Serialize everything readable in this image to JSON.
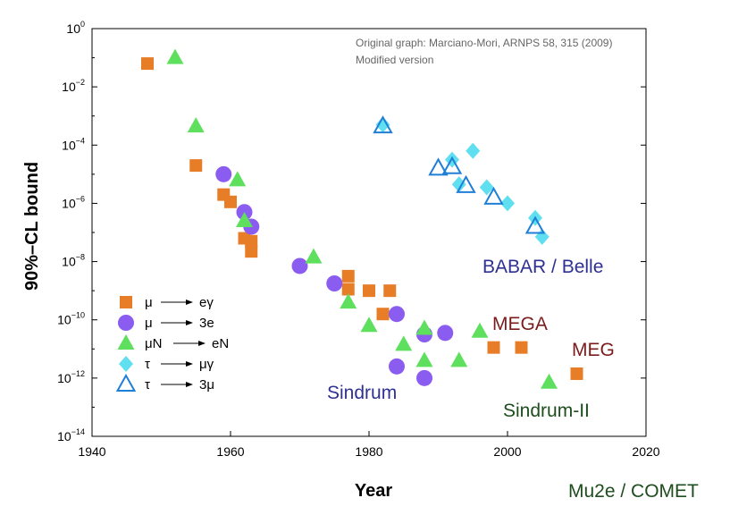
{
  "chart_data": {
    "type": "scatter",
    "title": "",
    "xlabel": "Year",
    "ylabel": "90%–CL bound",
    "xlim": [
      1940,
      2020
    ],
    "ylim_exp": [
      -14,
      0
    ],
    "log_y": true,
    "grid": false,
    "legend_position": "bottom-left",
    "x_ticks": [
      1940,
      1960,
      1980,
      2000,
      2020
    ],
    "y_tick_exponents": [
      0,
      -2,
      -4,
      -6,
      -8,
      -10,
      -12,
      -14
    ],
    "notes": [
      "Original graph: Marciano-Mori, ARNPS 58, 315 (2009)",
      "Modified version"
    ],
    "annotations": [
      {
        "text": "BABAR / Belle",
        "color": "#2e3192"
      },
      {
        "text": "MEGA",
        "color": "#7b1c1c"
      },
      {
        "text": "MEG",
        "color": "#7b1c1c"
      },
      {
        "text": "Sindrum",
        "color": "#2e3192"
      },
      {
        "text": "Sindrum-II",
        "color": "#1e4d1e"
      },
      {
        "text": "Mu2e / COMET",
        "color": "#1e4d1e"
      }
    ],
    "series": [
      {
        "name": "μ → eγ",
        "legend_left": "μ",
        "legend_right": "eγ",
        "marker": "square",
        "color": "#e87d28",
        "points": [
          [
            1948,
            -1.2
          ],
          [
            1955,
            -4.7
          ],
          [
            1959,
            -5.7
          ],
          [
            1960,
            -5.95
          ],
          [
            1962,
            -7.2
          ],
          [
            1963,
            -7.3
          ],
          [
            1963,
            -7.65
          ],
          [
            1977,
            -8.5
          ],
          [
            1977,
            -8.95
          ],
          [
            1980,
            -9.0
          ],
          [
            1982,
            -9.8
          ],
          [
            1983,
            -9.0
          ],
          [
            1998,
            -10.95
          ],
          [
            2002,
            -10.95
          ],
          [
            2010,
            -11.85
          ]
        ]
      },
      {
        "name": "μ → 3e",
        "legend_left": "μ",
        "legend_right": "3e",
        "marker": "circle",
        "color": "#8b5cf0",
        "points": [
          [
            1959,
            -5.0
          ],
          [
            1962,
            -6.3
          ],
          [
            1963,
            -6.8
          ],
          [
            1970,
            -8.15
          ],
          [
            1975,
            -8.75
          ],
          [
            1984,
            -9.8
          ],
          [
            1984,
            -11.6
          ],
          [
            1988,
            -10.5
          ],
          [
            1988,
            -12.0
          ],
          [
            1991,
            -10.45
          ]
        ]
      },
      {
        "name": "μN → eN",
        "legend_left": "μN",
        "legend_right": "eN",
        "marker": "triangle",
        "color": "#5ee05e",
        "points": [
          [
            1952,
            -1.0
          ],
          [
            1955,
            -3.35
          ],
          [
            1961,
            -5.2
          ],
          [
            1962,
            -6.6
          ],
          [
            1972,
            -7.85
          ],
          [
            1977,
            -9.4
          ],
          [
            1980,
            -10.2
          ],
          [
            1985,
            -10.85
          ],
          [
            1988,
            -10.3
          ],
          [
            1988,
            -11.4
          ],
          [
            1993,
            -11.4
          ],
          [
            1996,
            -10.4
          ],
          [
            2006,
            -12.15
          ]
        ]
      },
      {
        "name": "τ → μγ",
        "legend_left": "τ",
        "legend_right": "μγ",
        "marker": "diamond",
        "color": "#5fdff0",
        "points": [
          [
            1982,
            -3.3
          ],
          [
            1992,
            -4.5
          ],
          [
            1993,
            -5.35
          ],
          [
            1995,
            -4.2
          ],
          [
            1997,
            -5.45
          ],
          [
            2000,
            -6.0
          ],
          [
            2004,
            -6.5
          ],
          [
            2005,
            -7.15
          ]
        ]
      },
      {
        "name": "τ → 3μ",
        "legend_left": "τ",
        "legend_right": "3μ",
        "marker": "triangle-open",
        "color": "#1f7fd6",
        "points": [
          [
            1982,
            -3.35
          ],
          [
            1990,
            -4.8
          ],
          [
            1992,
            -4.75
          ],
          [
            1994,
            -5.4
          ],
          [
            1998,
            -5.8
          ],
          [
            2004,
            -6.8
          ]
        ]
      }
    ]
  }
}
